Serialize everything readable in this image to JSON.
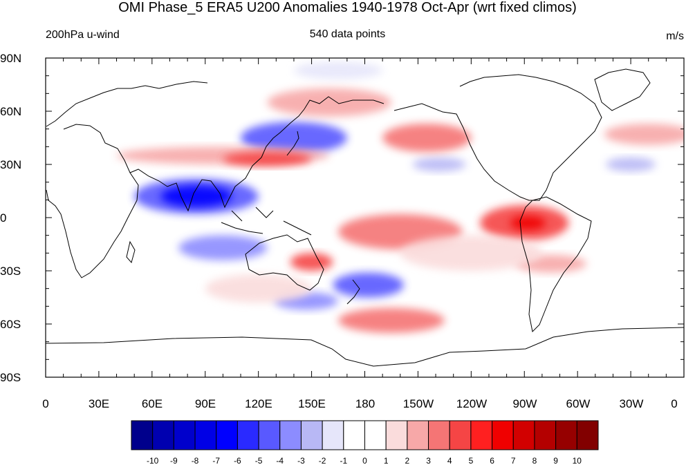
{
  "title": "OMI Phase_5 ERA5 U200 Anomalies 1940-1978 Oct-Apr (wrt fixed climos)",
  "subtitle_left": "200hPa u-wind",
  "subtitle_center": "540 data points",
  "subtitle_right": "m/s",
  "lat_labels": [
    "90N",
    "60N",
    "30N",
    "0",
    "30S",
    "60S",
    "90S"
  ],
  "lon_labels": [
    "0",
    "30E",
    "60E",
    "90E",
    "120E",
    "150E",
    "180",
    "150W",
    "120W",
    "90W",
    "60W",
    "30W",
    "0"
  ],
  "colorbar": {
    "labels": [
      "-10",
      "-9",
      "-8",
      "-7",
      "-6",
      "-5",
      "-4",
      "-3",
      "-2",
      "-1",
      "0",
      "1",
      "2",
      "3",
      "4",
      "5",
      "6",
      "7",
      "8",
      "9",
      "10"
    ],
    "colors": [
      "#00008c",
      "#0000b0",
      "#0000cc",
      "#0000e6",
      "#0000ff",
      "#2a2aff",
      "#5959ff",
      "#8c8cff",
      "#b8b8f5",
      "#e6e6fa",
      "#ffffff",
      "#ffffff",
      "#fadcdc",
      "#f7a8a8",
      "#f57575",
      "#f54545",
      "#ff2020",
      "#f00000",
      "#d20000",
      "#b40000",
      "#960000",
      "#820000"
    ]
  },
  "anomaly_blobs": [
    {
      "lon": 85,
      "lat": 12,
      "r_lon": 35,
      "r_lat": 10,
      "level": -4
    },
    {
      "lon": 85,
      "lat": 12,
      "r_lon": 20,
      "r_lat": 6,
      "level": -6
    },
    {
      "lon": 140,
      "lat": 45,
      "r_lon": 30,
      "r_lat": 9,
      "level": -4
    },
    {
      "lon": 100,
      "lat": -17,
      "r_lon": 25,
      "r_lat": 7,
      "level": -3
    },
    {
      "lon": 147,
      "lat": -47,
      "r_lon": 18,
      "r_lat": 5,
      "level": -3
    },
    {
      "lon": 182,
      "lat": -38,
      "r_lon": 20,
      "r_lat": 7,
      "level": -4
    },
    {
      "lon": 222,
      "lat": 30,
      "r_lon": 15,
      "r_lat": 4,
      "level": -2
    },
    {
      "lon": 330,
      "lat": 30,
      "r_lon": 14,
      "r_lat": 4,
      "level": -2
    },
    {
      "lon": 165,
      "lat": 83,
      "r_lon": 25,
      "r_lat": 5,
      "level": -1
    },
    {
      "lon": 100,
      "lat": 35,
      "r_lon": 60,
      "r_lat": 5,
      "level": 2
    },
    {
      "lon": 125,
      "lat": 33,
      "r_lon": 25,
      "r_lat": 4,
      "level": 4
    },
    {
      "lon": 160,
      "lat": 65,
      "r_lon": 35,
      "r_lat": 8,
      "level": 2
    },
    {
      "lon": 215,
      "lat": 45,
      "r_lon": 25,
      "r_lat": 8,
      "level": 3
    },
    {
      "lon": 340,
      "lat": 47,
      "r_lon": 25,
      "r_lat": 6,
      "level": 2
    },
    {
      "lon": 200,
      "lat": -8,
      "r_lon": 35,
      "r_lat": 10,
      "level": 3
    },
    {
      "lon": 270,
      "lat": -3,
      "r_lon": 25,
      "r_lat": 10,
      "level": 4
    },
    {
      "lon": 272,
      "lat": -3,
      "r_lon": 10,
      "r_lat": 4,
      "level": 6
    },
    {
      "lon": 150,
      "lat": -25,
      "r_lon": 12,
      "r_lat": 5,
      "level": 4
    },
    {
      "lon": 195,
      "lat": -58,
      "r_lon": 30,
      "r_lat": 7,
      "level": 3
    },
    {
      "lon": 285,
      "lat": -26,
      "r_lon": 20,
      "r_lat": 5,
      "level": 2
    },
    {
      "lon": 240,
      "lat": -20,
      "r_lon": 40,
      "r_lat": 10,
      "level": 1
    },
    {
      "lon": 120,
      "lat": -40,
      "r_lon": 30,
      "r_lat": 8,
      "level": 1
    }
  ]
}
